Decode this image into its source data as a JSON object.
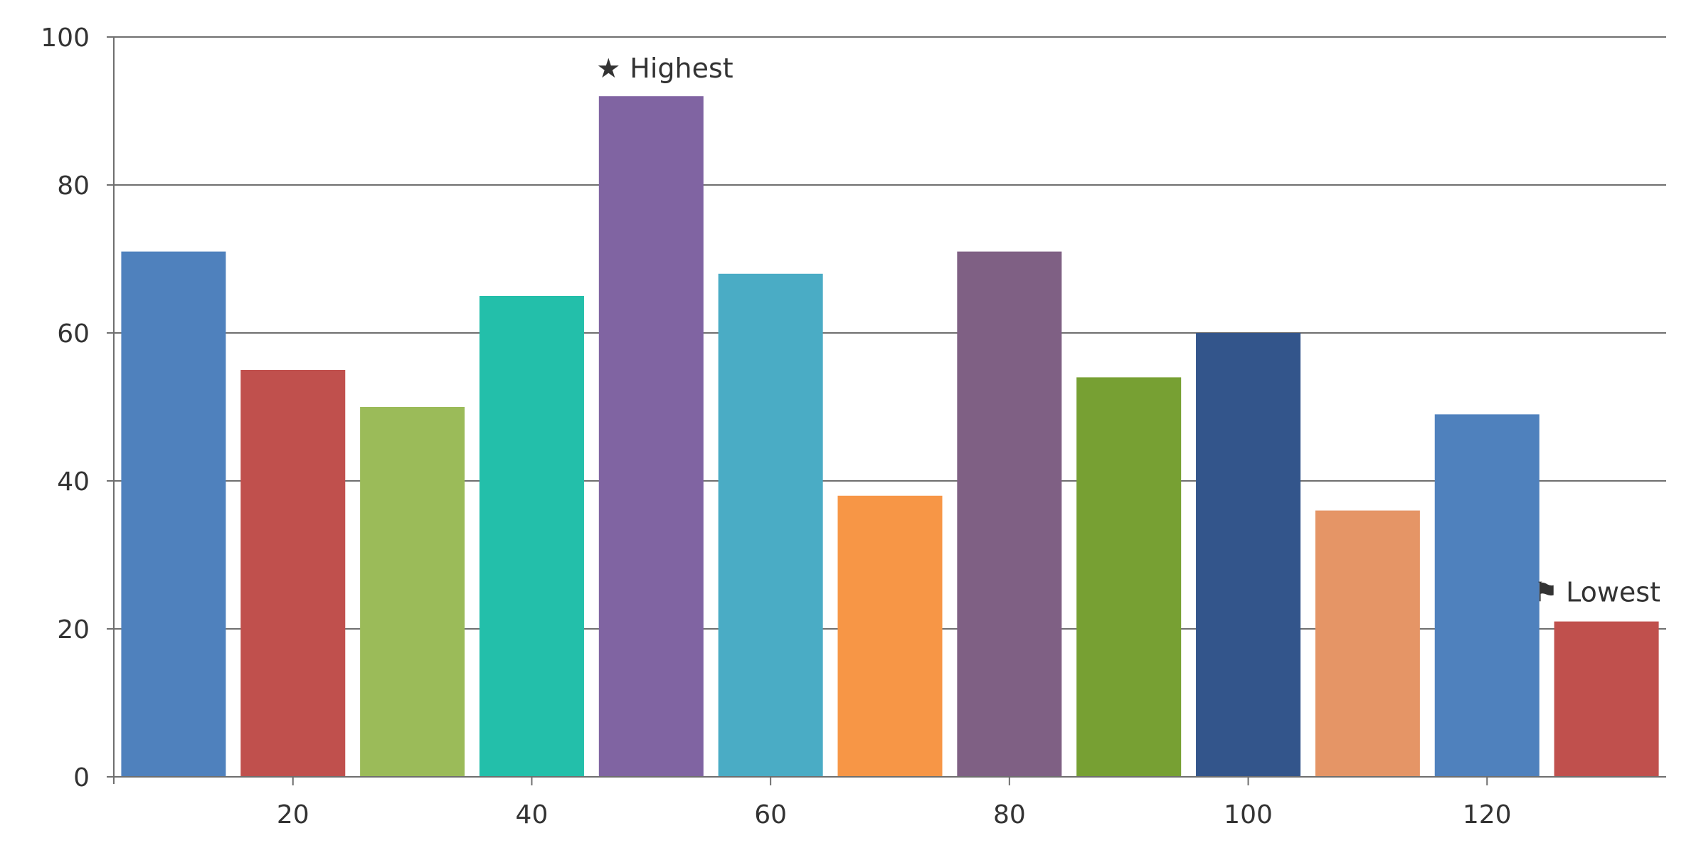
{
  "chart_data": {
    "type": "bar",
    "x": [
      10,
      20,
      30,
      40,
      50,
      60,
      70,
      80,
      90,
      100,
      110,
      120,
      130
    ],
    "values": [
      71,
      55,
      50,
      65,
      92,
      68,
      38,
      71,
      54,
      60,
      36,
      49,
      21
    ],
    "colors": [
      "#4f81bd",
      "#c0504d",
      "#9bbb59",
      "#23bfaa",
      "#8064a2",
      "#4aacc5",
      "#f79646",
      "#7f6084",
      "#77a033",
      "#33558b",
      "#e59566",
      "#4f81bd",
      "#c0504d"
    ],
    "xlim": [
      5,
      135
    ],
    "ylim": [
      0,
      100
    ],
    "xticks": [
      20,
      40,
      60,
      80,
      100,
      120
    ],
    "yticks": [
      0,
      20,
      40,
      60,
      80,
      100
    ],
    "grid": true,
    "annotations": [
      {
        "x": 50,
        "value": 92,
        "icon": "star-icon",
        "glyph": "★",
        "label": "Highest"
      },
      {
        "x": 130,
        "value": 21,
        "icon": "flag-icon",
        "glyph": "⚑",
        "label": "Lowest"
      }
    ]
  }
}
